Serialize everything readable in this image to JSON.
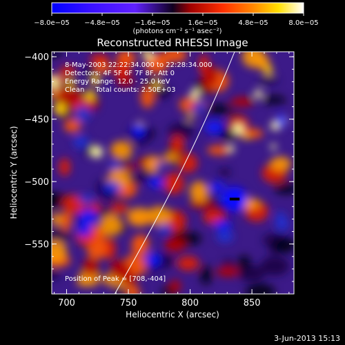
{
  "chart_data": {
    "type": "heatmap",
    "title": "Reconstructed RHESSI Image",
    "xlabel": "Heliocentric X (arcsec)",
    "ylabel": "Heliocentric Y (arcsec)",
    "xlim": [
      688,
      884
    ],
    "ylim": [
      -590,
      -396
    ],
    "x_ticks": [
      700,
      750,
      800,
      850
    ],
    "y_ticks": [
      -400,
      -450,
      -500,
      -550
    ],
    "x_tick_labels": [
      "700",
      "750",
      "800",
      "850"
    ],
    "y_tick_labels": [
      "−400",
      "−450",
      "−500",
      "−550"
    ],
    "colorbar": {
      "min": -8e-05,
      "max": 8e-05,
      "tick_labels": [
        "−8.0e−05",
        "−4.8e−05",
        "−1.6e−05",
        "1.6e−05",
        "4.8e−05",
        "8.0e−05"
      ],
      "ticks": [
        -8e-05,
        -4.8e-05,
        -1.6e-05,
        1.6e-05,
        4.8e-05,
        8e-05
      ],
      "unit_label": "(photons cm⁻² s⁻¹ asec⁻²)",
      "colormap": [
        "#0000ff",
        "#6020ff",
        "#000000",
        "#c80000",
        "#ff8800",
        "#ffff00",
        "#ffffff"
      ]
    },
    "info_lines": [
      "8-May-2003 22:22:34.000 to 22:28:34.000",
      "Detectors: 4F 5F 6F 7F 8F, Att 0",
      "Energy Range: 12.0 - 25.0 keV",
      "Clean     Total counts: 2.50E+03"
    ],
    "peak_label": "Position of Peak = [708,-404]",
    "limb_curve": [
      [
        739,
        -590
      ],
      [
        780,
        -520
      ],
      [
        810,
        -460
      ],
      [
        836,
        -396
      ]
    ],
    "source_marker": {
      "x": 836,
      "y": -514,
      "width_arcsec": 8
    }
  },
  "footer": {
    "date": "3-Jun-2013 15:13"
  }
}
